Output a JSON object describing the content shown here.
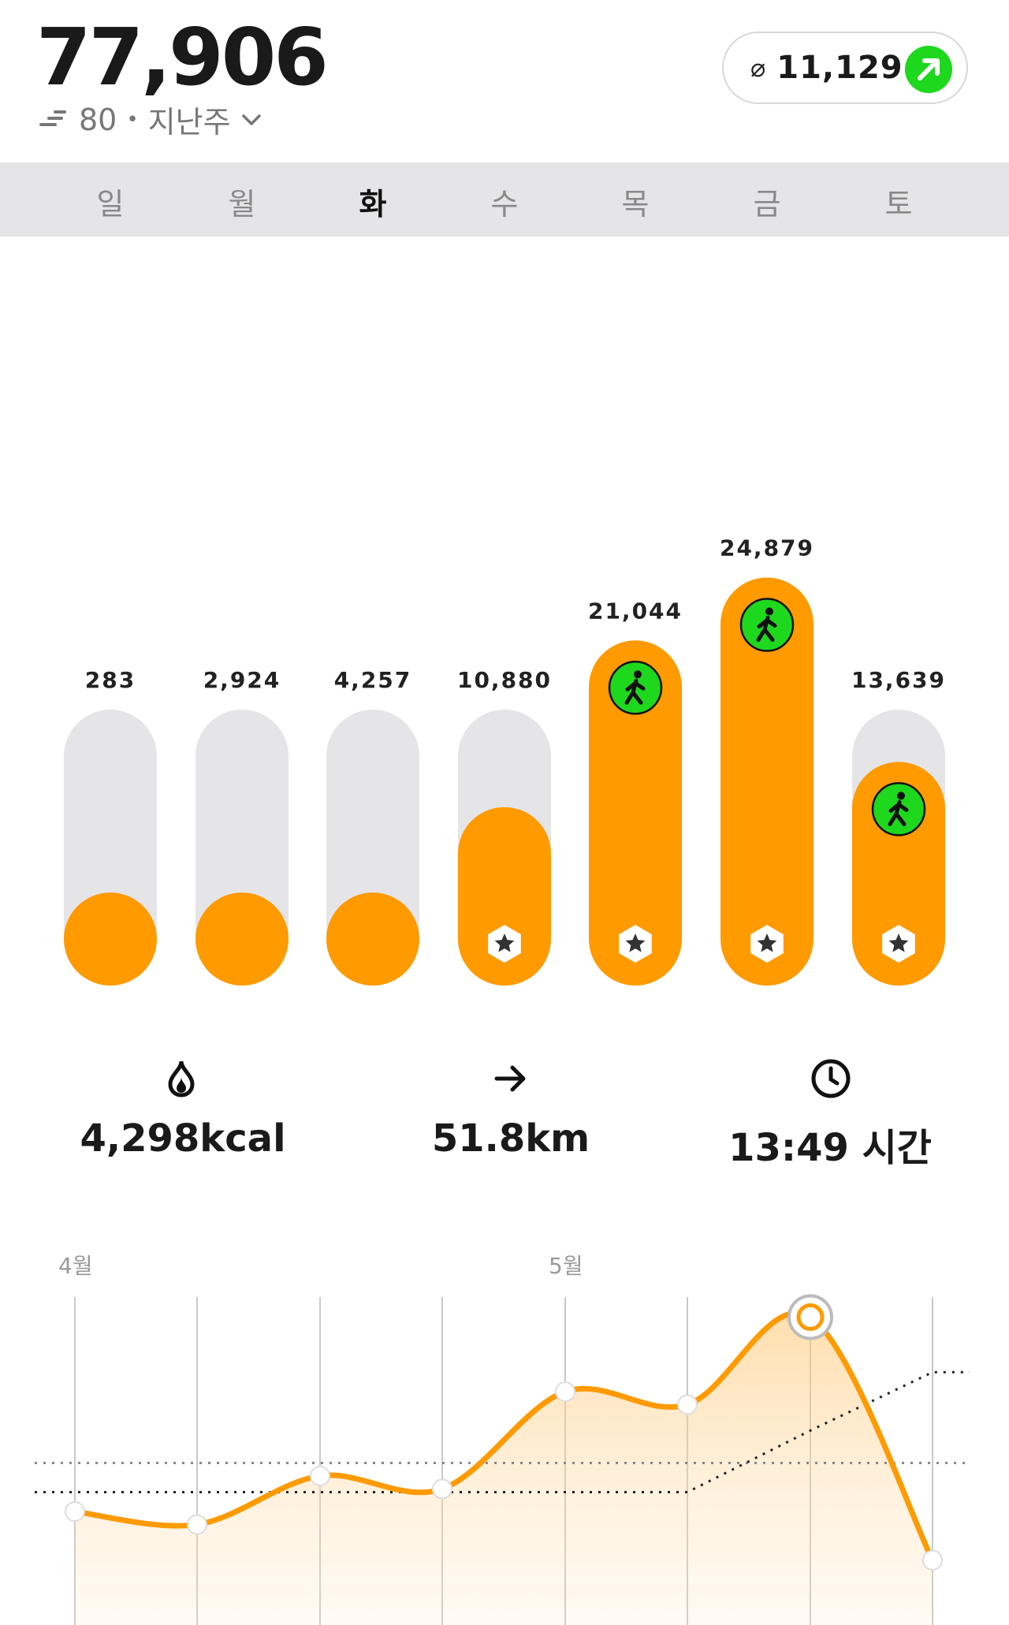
{
  "header": {
    "total_steps": "77,906",
    "sub_value": "80",
    "sub_separator": "•",
    "period_label": "지난주",
    "average_symbol": "⌀",
    "average_value": "11,129",
    "trend_icon": "arrow-up-right-icon"
  },
  "weekdays": [
    {
      "label": "일",
      "active": false
    },
    {
      "label": "월",
      "active": false
    },
    {
      "label": "화",
      "active": true
    },
    {
      "label": "수",
      "active": false
    },
    {
      "label": "목",
      "active": false
    },
    {
      "label": "금",
      "active": false
    },
    {
      "label": "토",
      "active": false
    }
  ],
  "chart_data": [
    {
      "type": "bar",
      "categories": [
        "일",
        "월",
        "화",
        "수",
        "목",
        "금",
        "토"
      ],
      "values": [
        283,
        2924,
        4257,
        10880,
        21044,
        24879,
        13639
      ],
      "value_labels": [
        "283",
        "2,924",
        "4,257",
        "10,880",
        "21,044",
        "24,879",
        "13,639"
      ],
      "goal_reached": [
        false,
        false,
        false,
        true,
        true,
        true,
        true
      ],
      "walking_badge": [
        false,
        false,
        false,
        false,
        true,
        true,
        true
      ],
      "bar_color": "#ff9a00",
      "track_color": "#e5e5e7",
      "badge_color": "#1ed81e"
    },
    {
      "type": "line",
      "month_labels": [
        {
          "label": "4월",
          "index": 0
        },
        {
          "label": "5월",
          "index": 4
        }
      ],
      "series": [
        {
          "values": [
            0.35,
            0.31,
            0.46,
            0.42,
            0.72,
            0.68,
            0.95,
            0.2
          ]
        },
        {
          "values": [
            0.41,
            0.41,
            0.41,
            0.41,
            0.41,
            0.41,
            0.6,
            0.78
          ],
          "style": "dotted"
        }
      ],
      "reference_level": 0.5,
      "highlight_index": 6,
      "line_color": "#ff9a00"
    }
  ],
  "stats": [
    {
      "icon": "flame-icon",
      "value": "4,298kcal"
    },
    {
      "icon": "arrow-right-icon",
      "value": "51.8km"
    },
    {
      "icon": "clock-icon",
      "value": "13:49 시간"
    }
  ]
}
